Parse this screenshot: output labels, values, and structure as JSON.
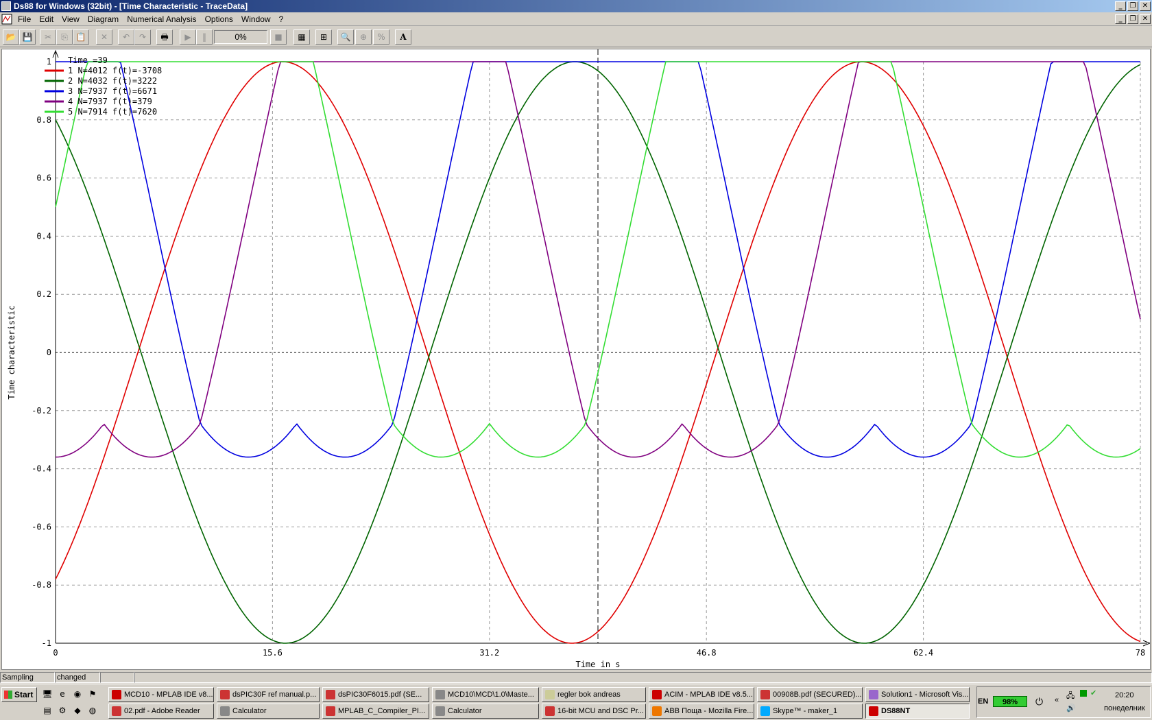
{
  "window": {
    "title": "Ds88 for Windows (32bit) - [Time Characteristic - TraceData]"
  },
  "menu": [
    "File",
    "Edit",
    "View",
    "Diagram",
    "Numerical Analysis",
    "Options",
    "Window",
    "?"
  ],
  "toolbar": {
    "icons": [
      "open-icon",
      "save-icon",
      "cut-icon",
      "copy-icon",
      "paste-icon",
      "delete-icon",
      "undo-icon",
      "redo-icon",
      "print-icon",
      "play-icon",
      "pause-icon",
      "stop-icon",
      "grid-icon",
      "axis-icon",
      "zoom-icon",
      "zoom-in-icon",
      "zoom-100-icon",
      "font-icon"
    ],
    "progress": "0%"
  },
  "chart_data": {
    "type": "line",
    "xlabel": "Time in s",
    "ylabel": "Time characteristic",
    "xlim": [
      0,
      78
    ],
    "ylim": [
      -1,
      1
    ],
    "x_ticks": [
      "0",
      "15.6",
      "31.2",
      "46.8",
      "62.4",
      "78"
    ],
    "y_ticks": [
      "-1",
      "-0.8",
      "-0.6",
      "-0.4",
      "-0.2",
      "0",
      "0.2",
      "0.4",
      "0.6",
      "0.8",
      "1"
    ],
    "grid": true,
    "legend_position": "top-left",
    "cursor_x": 39,
    "legend_header": "Time  =39",
    "series": [
      {
        "legend": "1 N=4012 f(t)=-3708",
        "color": "#e00000",
        "kind": "sine",
        "amp": 1.0,
        "offset": 0.0,
        "period": 41.6,
        "phase_x0": -0.78
      },
      {
        "legend": "2 N=4032 f(t)=3222",
        "color": "#006400",
        "kind": "sine",
        "amp": 1.0,
        "offset": 0.0,
        "period": 41.6,
        "phase_x0": 0.8
      },
      {
        "legend": "3 N=7937 f(t)=6671",
        "color": "#0000e0",
        "kind": "svm",
        "period": 41.6,
        "phase_deg": 240
      },
      {
        "legend": "4 N=7937 f(t)=379",
        "color": "#800080",
        "kind": "svm",
        "period": 41.6,
        "phase_deg": 120
      },
      {
        "legend": "5 N=7914 f(t)=7620",
        "color": "#33dd33",
        "kind": "svm",
        "period": 41.6,
        "phase_deg": 0
      }
    ]
  },
  "statusbar": {
    "cell1": "Sampling",
    "cell2": "changed"
  },
  "taskbar": {
    "start": "Start",
    "tasks_row1": [
      "MCD10 - MPLAB IDE v8...",
      "dsPIC30F ref manual.p...",
      "dsPIC30F6015.pdf (SE...",
      "MCD10\\MCD\\1.0\\Maste...",
      "regler bok andreas",
      "ACIM - MPLAB IDE v8.5...",
      "00908B.pdf (SECURED)...",
      "Solution1 - Microsoft Vis..."
    ],
    "tasks_row2": [
      "02.pdf - Adobe Reader",
      "Calculator",
      "MPLAB_C_Compiler_PI...",
      "Calculator",
      "16-bit MCU and DSC Pr...",
      "ABB Поща - Mozilla Fire...",
      "Skype™ - maker_1",
      "DS88NT"
    ],
    "lang": "EN",
    "battery": "98%",
    "clock": "20:20",
    "day": "понеделник"
  }
}
